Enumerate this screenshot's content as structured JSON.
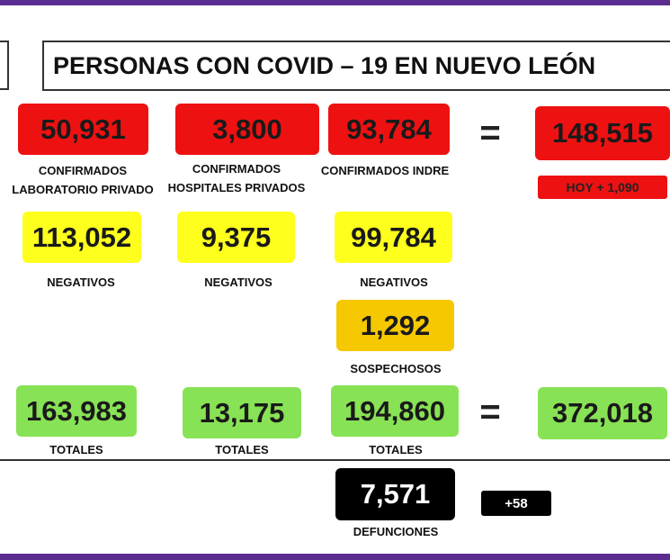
{
  "title": "PERSONAS CON COVID – 19 EN NUEVO LEÓN",
  "confirmed": [
    {
      "value": "50,931",
      "label": [
        "CONFIRMADOS",
        "LABORATORIO PRIVADO"
      ]
    },
    {
      "value": "3,800",
      "label": [
        "CONFIRMADOS",
        "HOSPITALES PRIVADOS"
      ]
    },
    {
      "value": "93,784",
      "label": [
        "CONFIRMADOS INDRE"
      ]
    }
  ],
  "confirmed_total": {
    "equals": "=",
    "value": "148,515",
    "today": "HOY + 1,090"
  },
  "negatives": [
    {
      "value": "113,052",
      "label": "NEGATIVOS"
    },
    {
      "value": "9,375",
      "label": "NEGATIVOS"
    },
    {
      "value": "99,784",
      "label": "NEGATIVOS"
    }
  ],
  "suspects": {
    "value": "1,292",
    "label": "SOSPECHOSOS"
  },
  "totals": [
    {
      "value": "163,983",
      "label": "TOTALES"
    },
    {
      "value": "13,175",
      "label": "TOTALES"
    },
    {
      "value": "194,860",
      "label": "TOTALES"
    }
  ],
  "grand_total": {
    "equals": "=",
    "value": "372,018"
  },
  "deaths": {
    "value": "7,571",
    "label": "DEFUNCIONES",
    "today": "+58"
  }
}
